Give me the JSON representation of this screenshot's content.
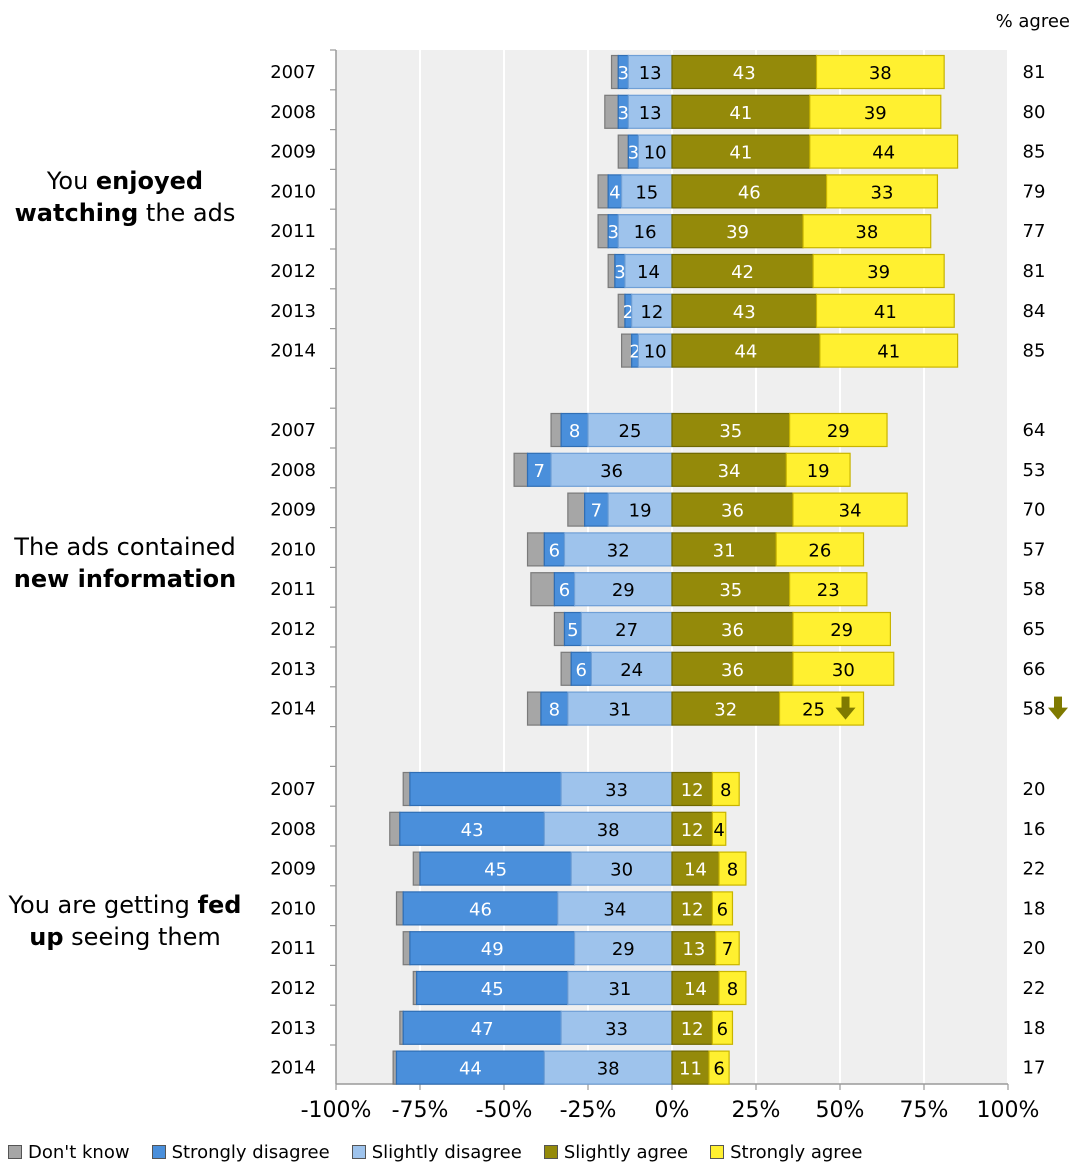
{
  "chart_data": {
    "type": "bar",
    "stacked": "diverging",
    "right_header": "% agree",
    "x_ticks": [
      "-100%",
      "-75%",
      "-50%",
      "-25%",
      "0%",
      "25%",
      "50%",
      "75%",
      "100%"
    ],
    "xlim": [
      -100,
      100
    ],
    "grid": true,
    "legend_position": "bottom",
    "categories": [
      "Don't know",
      "Strongly disagree",
      "Slightly disagree",
      "Slightly agree",
      "Strongly agree"
    ],
    "colors": {
      "dont_know": "#a6a6a6",
      "strongly_disagree": "#4a8fdb",
      "slightly_disagree": "#9ec3ec",
      "slightly_agree": "#948a0a",
      "strongly_agree": "#fff030",
      "down_arrow": "#7f7a00",
      "plot_background": "#efefef"
    },
    "groups": [
      {
        "label_parts": [
          {
            "text": "You ",
            "bold": false
          },
          {
            "text": "enjoyed",
            "bold": true
          },
          {
            "text": "\n",
            "bold": false
          },
          {
            "text": "watching",
            "bold": true
          },
          {
            "text": " the ads",
            "bold": false
          }
        ],
        "rows": [
          {
            "year": "2007",
            "dont_know": 2,
            "strongly_disagree": 3,
            "slightly_disagree": 13,
            "slightly_agree": 43,
            "strongly_agree": 38,
            "agree_total": 81
          },
          {
            "year": "2008",
            "dont_know": 4,
            "strongly_disagree": 3,
            "slightly_disagree": 13,
            "slightly_agree": 41,
            "strongly_agree": 39,
            "agree_total": 80
          },
          {
            "year": "2009",
            "dont_know": 3,
            "strongly_disagree": 3,
            "slightly_disagree": 10,
            "slightly_agree": 41,
            "strongly_agree": 44,
            "agree_total": 85
          },
          {
            "year": "2010",
            "dont_know": 3,
            "strongly_disagree": 4,
            "slightly_disagree": 15,
            "slightly_agree": 46,
            "strongly_agree": 33,
            "agree_total": 79
          },
          {
            "year": "2011",
            "dont_know": 3,
            "strongly_disagree": 3,
            "slightly_disagree": 16,
            "slightly_agree": 39,
            "strongly_agree": 38,
            "agree_total": 77
          },
          {
            "year": "2012",
            "dont_know": 2,
            "strongly_disagree": 3,
            "slightly_disagree": 14,
            "slightly_agree": 42,
            "strongly_agree": 39,
            "agree_total": 81
          },
          {
            "year": "2013",
            "dont_know": 2,
            "strongly_disagree": 2,
            "slightly_disagree": 12,
            "slightly_agree": 43,
            "strongly_agree": 41,
            "agree_total": 84
          },
          {
            "year": "2014",
            "dont_know": 3,
            "strongly_disagree": 2,
            "slightly_disagree": 10,
            "slightly_agree": 44,
            "strongly_agree": 41,
            "agree_total": 85
          }
        ]
      },
      {
        "label_parts": [
          {
            "text": "The ads contained",
            "bold": false
          },
          {
            "text": "\n",
            "bold": false
          },
          {
            "text": "new information",
            "bold": true
          }
        ],
        "rows": [
          {
            "year": "2007",
            "dont_know": 3,
            "strongly_disagree": 8,
            "slightly_disagree": 25,
            "slightly_agree": 35,
            "strongly_agree": 29,
            "agree_total": 64
          },
          {
            "year": "2008",
            "dont_know": 4,
            "strongly_disagree": 7,
            "slightly_disagree": 36,
            "slightly_agree": 34,
            "strongly_agree": 19,
            "agree_total": 53
          },
          {
            "year": "2009",
            "dont_know": 5,
            "strongly_disagree": 7,
            "slightly_disagree": 19,
            "slightly_agree": 36,
            "strongly_agree": 34,
            "agree_total": 70
          },
          {
            "year": "2010",
            "dont_know": 5,
            "strongly_disagree": 6,
            "slightly_disagree": 32,
            "slightly_agree": 31,
            "strongly_agree": 26,
            "agree_total": 57
          },
          {
            "year": "2011",
            "dont_know": 7,
            "strongly_disagree": 6,
            "slightly_disagree": 29,
            "slightly_agree": 35,
            "strongly_agree": 23,
            "agree_total": 58
          },
          {
            "year": "2012",
            "dont_know": 3,
            "strongly_disagree": 5,
            "slightly_disagree": 27,
            "slightly_agree": 36,
            "strongly_agree": 29,
            "agree_total": 65
          },
          {
            "year": "2013",
            "dont_know": 3,
            "strongly_disagree": 6,
            "slightly_disagree": 24,
            "slightly_agree": 36,
            "strongly_agree": 30,
            "agree_total": 66
          },
          {
            "year": "2014",
            "dont_know": 4,
            "strongly_disagree": 8,
            "slightly_disagree": 31,
            "slightly_agree": 32,
            "strongly_agree": 25,
            "agree_total": 58,
            "down_arrow": true
          }
        ]
      },
      {
        "label_parts": [
          {
            "text": "You are getting ",
            "bold": false
          },
          {
            "text": "fed",
            "bold": true
          },
          {
            "text": "\n",
            "bold": false
          },
          {
            "text": "up",
            "bold": true
          },
          {
            "text": " seeing them",
            "bold": false
          }
        ],
        "rows": [
          {
            "year": "2007",
            "dont_know": 2,
            "strongly_disagree": 45,
            "slightly_disagree": 33,
            "slightly_agree": 12,
            "strongly_agree": 8,
            "agree_total": 20,
            "hide_sd_label": true
          },
          {
            "year": "2008",
            "dont_know": 3,
            "strongly_disagree": 43,
            "slightly_disagree": 38,
            "slightly_agree": 12,
            "strongly_agree": 4,
            "agree_total": 16
          },
          {
            "year": "2009",
            "dont_know": 2,
            "strongly_disagree": 45,
            "slightly_disagree": 30,
            "slightly_agree": 14,
            "strongly_agree": 8,
            "agree_total": 22
          },
          {
            "year": "2010",
            "dont_know": 2,
            "strongly_disagree": 46,
            "slightly_disagree": 34,
            "slightly_agree": 12,
            "strongly_agree": 6,
            "agree_total": 18
          },
          {
            "year": "2011",
            "dont_know": 2,
            "strongly_disagree": 49,
            "slightly_disagree": 29,
            "slightly_agree": 13,
            "strongly_agree": 7,
            "agree_total": 20
          },
          {
            "year": "2012",
            "dont_know": 1,
            "strongly_disagree": 45,
            "slightly_disagree": 31,
            "slightly_agree": 14,
            "strongly_agree": 8,
            "agree_total": 22
          },
          {
            "year": "2013",
            "dont_know": 1,
            "strongly_disagree": 47,
            "slightly_disagree": 33,
            "slightly_agree": 12,
            "strongly_agree": 6,
            "agree_total": 18
          },
          {
            "year": "2014",
            "dont_know": 1,
            "strongly_disagree": 44,
            "slightly_disagree": 38,
            "slightly_agree": 11,
            "strongly_agree": 6,
            "agree_total": 17
          }
        ]
      }
    ]
  }
}
